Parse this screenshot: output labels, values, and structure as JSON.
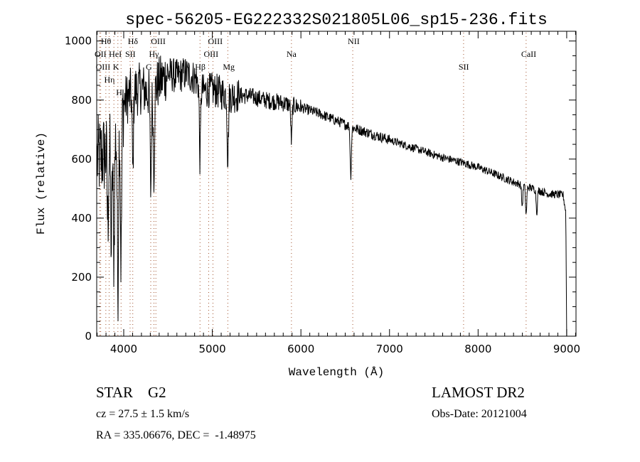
{
  "chart_data": {
    "type": "line",
    "title": "spec-56205-EG222332S021805L06_sp15-236.fits",
    "xlabel": "Wavelength (Å)",
    "ylabel": "Flux (relative)",
    "xlim": [
      3695,
      9105
    ],
    "ylim": [
      0,
      1033
    ],
    "xticks": [
      4000,
      5000,
      6000,
      7000,
      8000,
      9000
    ],
    "yticks": [
      0,
      200,
      400,
      600,
      800,
      1000
    ],
    "grid": false,
    "continuum": [
      [
        3700,
        600
      ],
      [
        3800,
        620
      ],
      [
        3900,
        660
      ],
      [
        4000,
        790
      ],
      [
        4100,
        830
      ],
      [
        4200,
        840
      ],
      [
        4300,
        820
      ],
      [
        4400,
        860
      ],
      [
        4500,
        890
      ],
      [
        4600,
        880
      ],
      [
        4700,
        890
      ],
      [
        4800,
        875
      ],
      [
        4900,
        830
      ],
      [
        5000,
        835
      ],
      [
        5200,
        815
      ],
      [
        5400,
        815
      ],
      [
        5600,
        800
      ],
      [
        5800,
        790
      ],
      [
        6000,
        775
      ],
      [
        6200,
        755
      ],
      [
        6400,
        730
      ],
      [
        6600,
        705
      ],
      [
        6800,
        685
      ],
      [
        7000,
        665
      ],
      [
        7200,
        645
      ],
      [
        7400,
        625
      ],
      [
        7600,
        605
      ],
      [
        7800,
        590
      ],
      [
        8000,
        572
      ],
      [
        8200,
        548
      ],
      [
        8400,
        522
      ],
      [
        8600,
        502
      ],
      [
        8800,
        482
      ],
      [
        8960,
        478
      ],
      [
        8990,
        420
      ],
      [
        9000,
        0
      ]
    ],
    "absorption": [
      [
        3820,
        380
      ],
      [
        3860,
        300
      ],
      [
        3889,
        280
      ],
      [
        3934,
        170
      ],
      [
        3970,
        250
      ],
      [
        4102,
        560
      ],
      [
        4305,
        500
      ],
      [
        4340,
        560
      ],
      [
        4861,
        600
      ],
      [
        5175,
        600
      ],
      [
        5893,
        660
      ],
      [
        6563,
        545
      ],
      [
        8498,
        440
      ],
      [
        8542,
        410
      ],
      [
        8662,
        420
      ]
    ],
    "lines": [
      {
        "label": "OII",
        "wavelength": 3727,
        "tier": 2
      },
      {
        "label": "OIII",
        "wavelength": 3740,
        "tier": 3
      },
      {
        "label": "Hθ",
        "wavelength": 3798,
        "tier": 1
      },
      {
        "label": "Hη",
        "wavelength": 3835,
        "tier": 3
      },
      {
        "label": "HeI",
        "wavelength": 3889,
        "tier": 2
      },
      {
        "label": "K",
        "wavelength": 3934,
        "tier": 1
      },
      {
        "label": "H",
        "wavelength": 3970,
        "tier": 3
      },
      {
        "label": "SII",
        "wavelength": 4072,
        "tier": 2
      },
      {
        "label": "Hδ",
        "wavelength": 4102,
        "tier": 1
      },
      {
        "label": "G",
        "wavelength": 4305,
        "tier": 3
      },
      {
        "label": "Hγ",
        "wavelength": 4341,
        "tier": 2
      },
      {
        "label": "OIII",
        "wavelength": 4363,
        "tier": 1
      },
      {
        "label": "Hβ",
        "wavelength": 4861,
        "tier": 3
      },
      {
        "label": "OIII",
        "wavelength": 4959,
        "tier": 2
      },
      {
        "label": "OIII",
        "wavelength": 5007,
        "tier": 1
      },
      {
        "label": "Mg",
        "wavelength": 5175,
        "tier": 3
      },
      {
        "label": "Na",
        "wavelength": 5893,
        "tier": 2
      },
      {
        "label": "NII",
        "wavelength": 6585,
        "tier": 1
      },
      {
        "label": "SII",
        "wavelength": 7836,
        "tier": 3
      },
      {
        "label": "CaII",
        "wavelength": 8542,
        "tier": 2
      }
    ],
    "colors": {
      "line": "#000000",
      "marker_lines": "#a0522d"
    }
  },
  "info": {
    "class": "STAR    G2",
    "survey": "LAMOST DR2",
    "cz": "cz = 27.5 ± 1.5 km/s",
    "obs_date": "Obs-Date: 20121004",
    "coords": "RA = 335.06676, DEC =  -1.48975"
  }
}
